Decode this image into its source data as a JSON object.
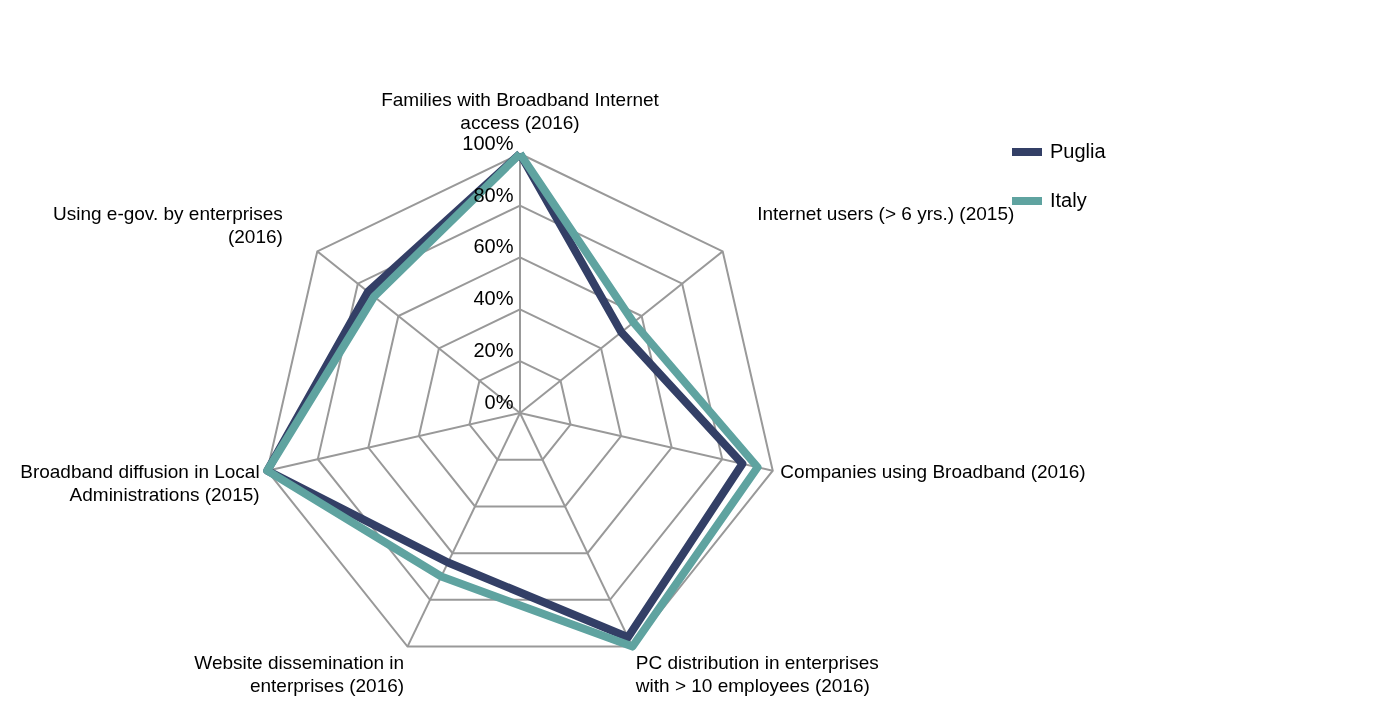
{
  "chart_data": {
    "type": "radar",
    "categories": [
      "Families with Broadband Internet access (2016)",
      "Internet users (> 6 yrs.) (2015)",
      "Companies using Broadband (2016)",
      "PC distribution in enterprises with > 10 employees (2016)",
      "Website dissemination in enterprises (2016)",
      "Broadband diffusion in Local Administrations (2015)",
      "Using e-gov. by enterprises (2016)"
    ],
    "series": [
      {
        "name": "Puglia",
        "color": "#333f66",
        "values": [
          100,
          50,
          88,
          96,
          64,
          100,
          75
        ]
      },
      {
        "name": "Italy",
        "color": "#5fa3a0",
        "values": [
          100,
          56,
          94,
          100,
          70,
          100,
          72
        ]
      }
    ],
    "ylim": [
      0,
      100
    ],
    "yticks": [
      {
        "value": 0,
        "label": "0%"
      },
      {
        "value": 20,
        "label": "20%"
      },
      {
        "value": 40,
        "label": "40%"
      },
      {
        "value": 60,
        "label": "60%"
      },
      {
        "value": 80,
        "label": "80%"
      },
      {
        "value": 100,
        "label": "100%"
      }
    ],
    "grid": true,
    "legend": "right"
  }
}
